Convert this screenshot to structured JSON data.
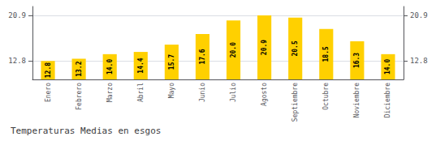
{
  "chart_data": {
    "type": "bar",
    "title": "Temperaturas Medias en esgos",
    "categories": [
      "Enero",
      "Febrero",
      "Marzo",
      "Abril",
      "Mayo",
      "Junio",
      "Julio",
      "Agosto",
      "Septiembre",
      "Octubre",
      "Noviembre",
      "Diciembre"
    ],
    "values": [
      12.8,
      13.2,
      14.0,
      14.4,
      15.7,
      17.6,
      20.0,
      20.9,
      20.5,
      18.5,
      16.3,
      14.0
    ],
    "value_labels": [
      "12.8",
      "13.2",
      "14.0",
      "14.4",
      "15.7",
      "17.6",
      "20.0",
      "20.9",
      "20.5",
      "18.5",
      "16.3",
      "14.0"
    ],
    "data_labels": true,
    "color": "#FFD000",
    "ylim": [
      9.5,
      22.5
    ],
    "yticks": [
      12.8,
      20.9
    ],
    "y2lim": [
      9.5,
      22.5
    ],
    "y2ticks": [
      12.8,
      20.9
    ],
    "grid": true
  }
}
